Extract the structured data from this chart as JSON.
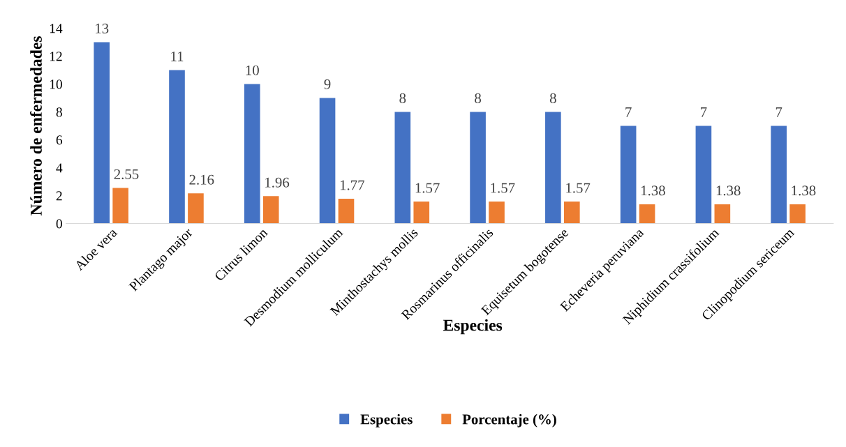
{
  "chart_data": {
    "type": "bar",
    "xlabel": "Especies",
    "ylabel": "Número de enfermedades",
    "categories": [
      "Aloe vera",
      "Plantago major",
      "Citrus limon",
      "Desmodium molliculum",
      "Minthostachys mollis",
      "Rosmarinus officinalis",
      "Equisetum bogotense",
      "Echeveria peruviana",
      "Niphidium crassifolium",
      "Clinopodium sericeum"
    ],
    "series": [
      {
        "name": "Especies",
        "color": "#4472c4",
        "values": [
          13,
          11,
          10,
          9,
          8,
          8,
          8,
          7,
          7,
          7
        ]
      },
      {
        "name": "Porcentaje (%)",
        "color": "#ed7d31",
        "values": [
          2.55,
          2.16,
          1.96,
          1.77,
          1.57,
          1.57,
          1.57,
          1.38,
          1.38,
          1.38
        ]
      }
    ],
    "ylim": [
      0,
      14
    ],
    "yticks": [
      0,
      2,
      4,
      6,
      8,
      10,
      12,
      14
    ],
    "grid": false,
    "legend": "bottom",
    "data_labels": true
  }
}
